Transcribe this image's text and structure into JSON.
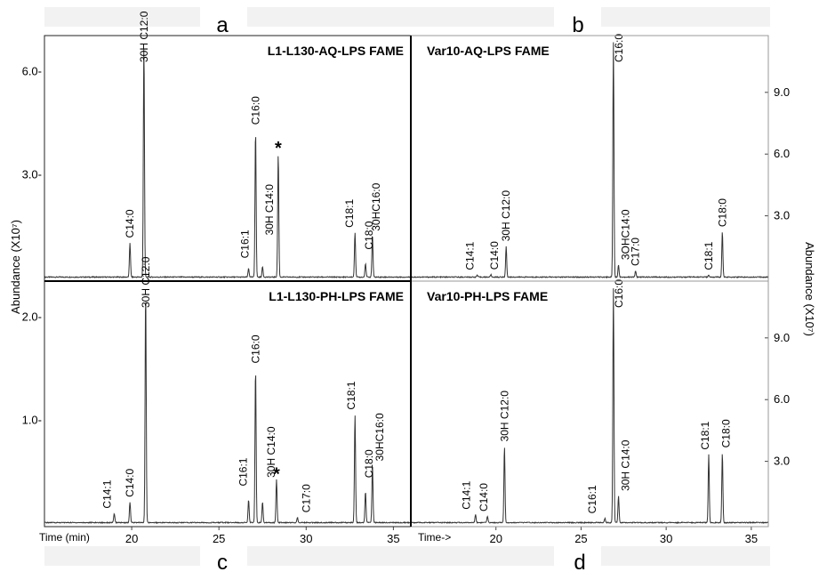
{
  "figure": {
    "left_axis_label": "Abundance (X10⁷)",
    "right_axis_label": "Abundance (X10⁷)",
    "bottom_left_axis_label": "Time (min)",
    "bottom_right_axis_label": "Time->"
  },
  "chart_data": [
    {
      "panel": "a",
      "type": "line",
      "title": "L1-L130-AQ-LPS FAME",
      "xlabel": "",
      "ylabel": "Abundance (X10⁷)",
      "xlim": [
        15.0,
        36.0
      ],
      "ylim": [
        0,
        6.9
      ],
      "yticks": [
        3.0,
        6.0
      ],
      "ytick_labels": [
        "3.0-",
        "6.0-"
      ],
      "peaks": [
        {
          "t": 19.9,
          "y": 1.0,
          "label": "C14:0"
        },
        {
          "t": 20.7,
          "y": 6.8,
          "label": "30H C12:0"
        },
        {
          "t": 26.7,
          "y": 0.25,
          "label": "C16:1"
        },
        {
          "t": 27.1,
          "y": 4.3,
          "label": "C16:0"
        },
        {
          "t": 27.5,
          "y": 0.3,
          "label": "30H C14:0"
        },
        {
          "t": 28.4,
          "y": 3.6,
          "label": "*"
        },
        {
          "t": 32.8,
          "y": 1.3,
          "label": "C18:1"
        },
        {
          "t": 33.4,
          "y": 0.4,
          "label": "C18:0"
        },
        {
          "t": 33.8,
          "y": 1.2,
          "label": "30HC16:0"
        }
      ]
    },
    {
      "panel": "b",
      "type": "line",
      "title": "Var10-AQ-LPS FAME",
      "xlabel": "",
      "ylabel": "Abundance (X10⁷)",
      "xlim": [
        15.0,
        36.0
      ],
      "ylim": [
        0,
        11.5
      ],
      "yticks": [
        3.0,
        6.0,
        9.0
      ],
      "ytick_labels": [
        "3.0",
        "6.0",
        "9.0"
      ],
      "peaks": [
        {
          "t": 18.9,
          "y": 0.1,
          "label": "C14:1"
        },
        {
          "t": 19.7,
          "y": 0.12,
          "label": "C14:0"
        },
        {
          "t": 20.6,
          "y": 1.5,
          "label": "30H C12:0"
        },
        {
          "t": 26.9,
          "y": 11.4,
          "label": "C16:0"
        },
        {
          "t": 27.2,
          "y": 0.6,
          "label": "3OHC14:0"
        },
        {
          "t": 28.2,
          "y": 0.3,
          "label": "C17:0"
        },
        {
          "t": 32.5,
          "y": 0.1,
          "label": "C18:1"
        },
        {
          "t": 33.3,
          "y": 2.2,
          "label": "C18:0"
        }
      ]
    },
    {
      "panel": "c",
      "type": "line",
      "title": "L1-L130-PH-LPS FAME",
      "xlabel": "Time (min)",
      "ylabel": "Abundance (X10⁷)",
      "xlim": [
        15.0,
        36.0
      ],
      "xticks": [
        20,
        25,
        30,
        35
      ],
      "ylim": [
        0,
        2.3
      ],
      "yticks": [
        1.0,
        2.0
      ],
      "ytick_labels": [
        "1.0-",
        "2.0-"
      ],
      "peaks": [
        {
          "t": 19.0,
          "y": 0.09,
          "label": "C14:1"
        },
        {
          "t": 19.9,
          "y": 0.2,
          "label": "C14:0"
        },
        {
          "t": 20.8,
          "y": 2.25,
          "label": "30H C12:0"
        },
        {
          "t": 26.7,
          "y": 0.22,
          "label": "C16:1"
        },
        {
          "t": 27.1,
          "y": 1.5,
          "label": "C16:0"
        },
        {
          "t": 27.5,
          "y": 0.2,
          "label": "30H C14:0"
        },
        {
          "t": 28.3,
          "y": 0.42,
          "label": "*"
        },
        {
          "t": 29.5,
          "y": 0.05,
          "label": "C17:0"
        },
        {
          "t": 32.8,
          "y": 1.05,
          "label": "C18:1"
        },
        {
          "t": 33.4,
          "y": 0.3,
          "label": "C18:0"
        },
        {
          "t": 33.8,
          "y": 0.55,
          "label": "30HC16:0"
        }
      ]
    },
    {
      "panel": "d",
      "type": "line",
      "title": "Var10-PH-LPS FAME",
      "xlabel": "Time->",
      "ylabel": "Abundance (X10⁷)",
      "xlim": [
        15.0,
        36.0
      ],
      "xticks": [
        20,
        25,
        30,
        35
      ],
      "ylim": [
        0,
        11.5
      ],
      "yticks": [
        3.0,
        6.0,
        9.0
      ],
      "ytick_labels": [
        "3.0",
        "6.0",
        "9.0"
      ],
      "peaks": [
        {
          "t": 18.8,
          "y": 0.4,
          "label": "C14:1"
        },
        {
          "t": 19.5,
          "y": 0.3,
          "label": "C14:0"
        },
        {
          "t": 20.5,
          "y": 3.7,
          "label": "30H C12:0"
        },
        {
          "t": 26.4,
          "y": 0.2,
          "label": "C16:1"
        },
        {
          "t": 26.9,
          "y": 11.4,
          "label": "C16:0"
        },
        {
          "t": 27.2,
          "y": 1.3,
          "label": "30H C14:0"
        },
        {
          "t": 32.5,
          "y": 3.3,
          "label": "C18:1"
        },
        {
          "t": 33.3,
          "y": 3.4,
          "label": "C18:0"
        }
      ]
    }
  ]
}
